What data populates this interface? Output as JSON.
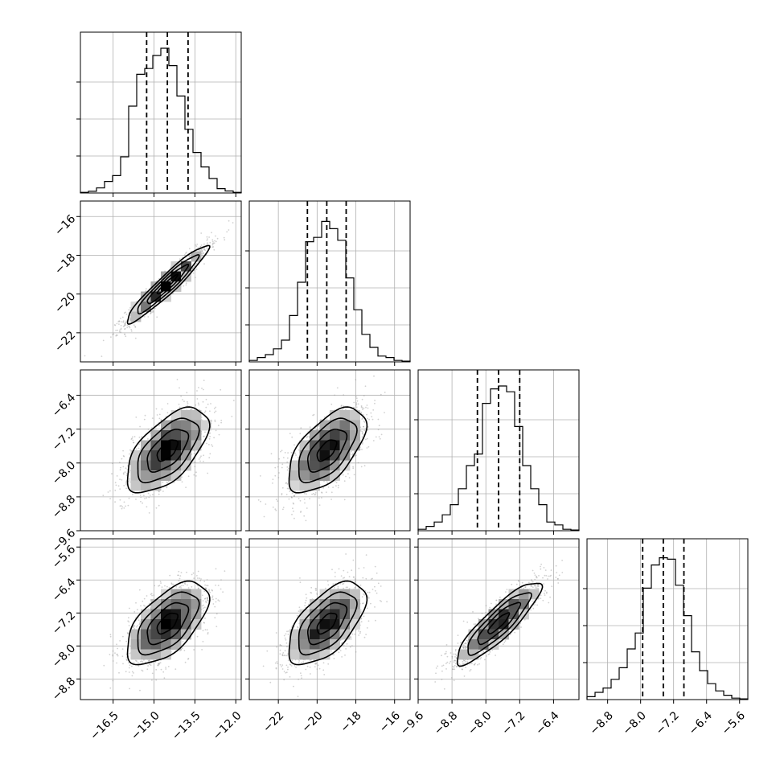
{
  "chart_data": {
    "type": "corner",
    "grid": true,
    "parameters": [
      {
        "range": [
          -17.7,
          -11.8
        ],
        "ticks": [
          -16.5,
          -15.0,
          -13.5,
          -12.0
        ],
        "tick_labels": [
          "−16.5",
          "−15.0",
          "−13.5",
          "−12.0"
        ],
        "quantiles": [
          -15.27,
          -14.51,
          -13.75
        ],
        "mean": -14.51,
        "sd": 0.75
      },
      {
        "range": [
          -23.5,
          -15.2
        ],
        "ticks": [
          -22,
          -20,
          -18,
          -16
        ],
        "tick_labels": [
          "−22",
          "−20",
          "−18",
          "−16"
        ],
        "quantiles": [
          -20.5,
          -19.5,
          -18.5
        ],
        "mean": -19.5,
        "sd": 1.0
      },
      {
        "range": [
          -9.6,
          -5.8
        ],
        "ticks": [
          -9.6,
          -8.8,
          -8.0,
          -7.2,
          -6.4
        ],
        "tick_labels": [
          "−9.6",
          "−8.8",
          "−8.0",
          "−7.2",
          "−6.4"
        ],
        "quantiles": [
          -8.2,
          -7.7,
          -7.2
        ],
        "mean": -7.7,
        "sd": 0.5
      },
      {
        "range": [
          -9.3,
          -5.4
        ],
        "ticks": [
          -8.8,
          -8.0,
          -7.2,
          -6.4,
          -5.6
        ],
        "tick_labels": [
          "−8.8",
          "−8.0",
          "−7.2",
          "−6.4",
          "−5.6"
        ],
        "quantiles": [
          -7.95,
          -7.45,
          -6.95
        ],
        "mean": -7.45,
        "sd": 0.5
      }
    ],
    "histograms": [
      {
        "param": 0,
        "bin_edges": [
          -17.7,
          -17.405,
          -17.11,
          -16.815,
          -16.52,
          -16.225,
          -15.93,
          -15.635,
          -15.34,
          -15.045,
          -14.75,
          -14.455,
          -14.16,
          -13.865,
          -13.57,
          -13.275,
          -12.98,
          -12.685,
          -12.39,
          -12.095,
          -11.8
        ],
        "counts": [
          0.004,
          0.012,
          0.035,
          0.08,
          0.12,
          0.25,
          0.6,
          0.82,
          0.86,
          0.95,
          1.0,
          0.88,
          0.67,
          0.44,
          0.28,
          0.18,
          0.1,
          0.03,
          0.014,
          0.004
        ]
      },
      {
        "param": 1,
        "bin_edges": [
          -23.5,
          -23.085,
          -22.67,
          -22.255,
          -21.84,
          -21.425,
          -21.01,
          -20.595,
          -20.18,
          -19.765,
          -19.35,
          -18.935,
          -18.52,
          -18.105,
          -17.69,
          -17.275,
          -16.86,
          -16.445,
          -16.03,
          -15.615,
          -15.2
        ],
        "counts": [
          0.01,
          0.03,
          0.05,
          0.09,
          0.15,
          0.32,
          0.55,
          0.83,
          0.86,
          0.97,
          0.92,
          0.84,
          0.58,
          0.36,
          0.19,
          0.1,
          0.04,
          0.03,
          0.01,
          0.005
        ]
      },
      {
        "param": 2,
        "bin_edges": [
          -9.6,
          -9.41,
          -9.22,
          -9.03,
          -8.84,
          -8.65,
          -8.46,
          -8.27,
          -8.08,
          -7.89,
          -7.7,
          -7.51,
          -7.32,
          -7.13,
          -6.94,
          -6.75,
          -6.56,
          -6.37,
          -6.18,
          -5.99,
          -5.8
        ],
        "counts": [
          0.01,
          0.03,
          0.06,
          0.11,
          0.18,
          0.29,
          0.45,
          0.53,
          0.88,
          0.98,
          1.0,
          0.96,
          0.72,
          0.45,
          0.29,
          0.18,
          0.06,
          0.04,
          0.01,
          0.005
        ]
      },
      {
        "param": 3,
        "bin_edges": [
          -9.3,
          -9.105,
          -8.91,
          -8.715,
          -8.52,
          -8.325,
          -8.13,
          -7.935,
          -7.74,
          -7.545,
          -7.35,
          -7.155,
          -6.96,
          -6.765,
          -6.57,
          -6.375,
          -6.18,
          -5.985,
          -5.79,
          -5.595,
          -5.4
        ],
        "counts": [
          0.02,
          0.05,
          0.08,
          0.14,
          0.22,
          0.35,
          0.46,
          0.77,
          0.93,
          0.98,
          0.97,
          0.79,
          0.58,
          0.33,
          0.2,
          0.11,
          0.06,
          0.03,
          0.01,
          0.005
        ]
      }
    ],
    "scatter_panels": [
      {
        "x": 0,
        "y": 1,
        "correlation": 0.95
      },
      {
        "x": 0,
        "y": 2,
        "correlation": 0.6
      },
      {
        "x": 1,
        "y": 2,
        "correlation": 0.6
      },
      {
        "x": 0,
        "y": 3,
        "correlation": 0.6
      },
      {
        "x": 1,
        "y": 3,
        "correlation": 0.6
      },
      {
        "x": 2,
        "y": 3,
        "correlation": 0.88
      }
    ],
    "contour_levels_sigma": [
      0.5,
      1.0,
      1.5,
      2.0
    ]
  }
}
